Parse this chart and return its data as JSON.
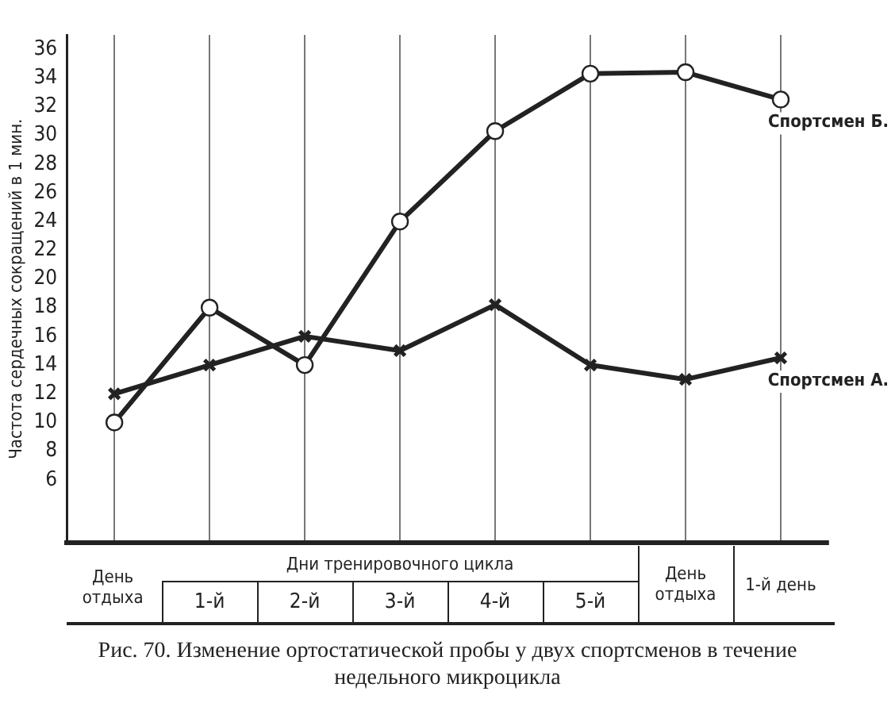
{
  "chart_data": {
    "type": "line",
    "title": "Рис. 70. Изменение ортостатической пробы у двух спортсменов в течение недельного микроцикла",
    "ylabel": "Частота сердечных сокращений в 1 мин.",
    "xlabel": "Дни тренировочного цикла",
    "categories": [
      "День отдыха",
      "1-й",
      "2-й",
      "3-й",
      "4-й",
      "5-й",
      "День отдыха",
      "1-й день"
    ],
    "series": [
      {
        "name": "Спортсмен Б.",
        "color": "#222222",
        "marker": "circle",
        "values": [
          10,
          18,
          14,
          24,
          30.3,
          34.3,
          34.4,
          32.5
        ]
      },
      {
        "name": "Спортсмен А.",
        "color": "#222222",
        "marker": "cross",
        "values": [
          12,
          14,
          16,
          15,
          18.2,
          14,
          13,
          14.5
        ]
      }
    ],
    "ylim": [
      1.6,
      37
    ],
    "yticks": [
      6,
      8,
      10,
      12,
      14,
      16,
      18,
      20,
      22,
      24,
      26,
      28,
      30,
      32,
      34,
      36
    ],
    "grid": "x",
    "legend": false
  }
}
